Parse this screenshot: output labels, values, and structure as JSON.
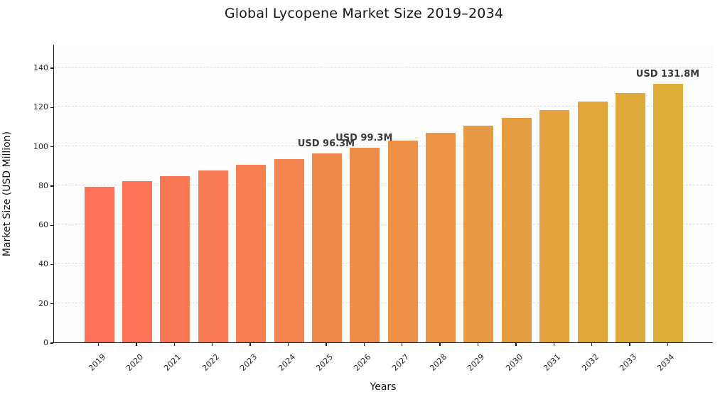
{
  "chart_data": {
    "type": "bar",
    "title": "Global Lycopene Market Size 2019–2034",
    "xlabel": "Years",
    "ylabel": "Market Size (USD Million)",
    "categories": [
      "2019",
      "2020",
      "2021",
      "2022",
      "2023",
      "2024",
      "2025",
      "2026",
      "2027",
      "2028",
      "2029",
      "2030",
      "2031",
      "2032",
      "2033",
      "2034"
    ],
    "values": [
      79.4,
      82.3,
      84.8,
      87.5,
      90.4,
      93.3,
      96.3,
      99.3,
      102.9,
      106.6,
      110.4,
      114.4,
      118.5,
      122.8,
      127.2,
      131.8
    ],
    "unit": "USD Million",
    "ylim": [
      0,
      152
    ],
    "yticks": [
      0,
      20,
      40,
      60,
      80,
      100,
      120,
      140
    ],
    "grid": "horizontal-dashed",
    "legend": "none",
    "annotations": [
      {
        "category": "2025",
        "index": 6,
        "label": "USD 96.3M"
      },
      {
        "category": "2026",
        "index": 7,
        "label": "USD 99.3M"
      },
      {
        "category": "2034",
        "index": 15,
        "label": "USD 131.8M"
      }
    ],
    "colors": {
      "bar_gradient_start": "#FF7058",
      "bar_gradient_end": "#DDAD38",
      "annotation_text": "#3b3b3b",
      "grid": "#dcdcdc",
      "axis": "#1a1a1a"
    }
  }
}
